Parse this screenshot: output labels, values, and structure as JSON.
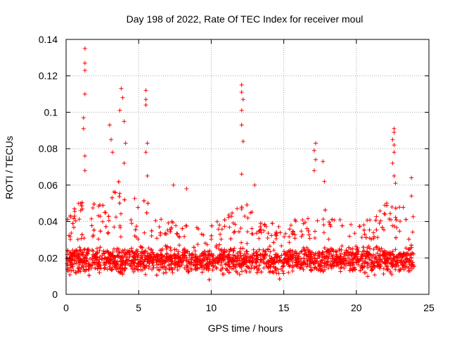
{
  "chart_data": {
    "type": "scatter",
    "title": "Day 198 of 2022, Rate Of TEC Index for receiver moul",
    "xlabel": "GPS time / hours",
    "ylabel": "ROTI / TECUs",
    "xlim": [
      0,
      25
    ],
    "ylim": [
      0,
      0.14
    ],
    "x_ticks": [
      0,
      5,
      10,
      15,
      20,
      25
    ],
    "y_ticks": [
      0,
      0.02,
      0.04,
      0.06,
      0.08,
      0.1,
      0.12,
      0.14
    ],
    "x_tick_labels": [
      "0",
      "5",
      "10",
      "15",
      "20",
      "25"
    ],
    "y_tick_labels": [
      "0",
      "0.02",
      "0.04",
      "0.06",
      "0.08",
      "0.1",
      "0.12",
      "0.14"
    ],
    "grid": true,
    "marker": "+",
    "color": "#ff0000",
    "series": [
      {
        "name": "ROTI",
        "description": "dense band of + markers roughly between 0.01 and 0.03 TECU/s across 0-24 h; the peaks listed are estimated",
        "peaks": [
          {
            "x": 1.3,
            "y": 0.135
          },
          {
            "x": 1.3,
            "y": 0.127
          },
          {
            "x": 1.3,
            "y": 0.123
          },
          {
            "x": 1.3,
            "y": 0.11
          },
          {
            "x": 1.2,
            "y": 0.097
          },
          {
            "x": 1.2,
            "y": 0.091
          },
          {
            "x": 1.3,
            "y": 0.076
          },
          {
            "x": 1.3,
            "y": 0.068
          },
          {
            "x": 3.0,
            "y": 0.093
          },
          {
            "x": 3.1,
            "y": 0.085
          },
          {
            "x": 3.2,
            "y": 0.078
          },
          {
            "x": 3.8,
            "y": 0.113
          },
          {
            "x": 3.9,
            "y": 0.108
          },
          {
            "x": 3.7,
            "y": 0.101
          },
          {
            "x": 4.0,
            "y": 0.095
          },
          {
            "x": 4.1,
            "y": 0.083
          },
          {
            "x": 4.0,
            "y": 0.072
          },
          {
            "x": 5.5,
            "y": 0.112
          },
          {
            "x": 5.5,
            "y": 0.107
          },
          {
            "x": 5.5,
            "y": 0.104
          },
          {
            "x": 5.6,
            "y": 0.083
          },
          {
            "x": 5.5,
            "y": 0.078
          },
          {
            "x": 5.6,
            "y": 0.065
          },
          {
            "x": 7.4,
            "y": 0.06
          },
          {
            "x": 8.3,
            "y": 0.058
          },
          {
            "x": 12.1,
            "y": 0.115
          },
          {
            "x": 12.1,
            "y": 0.111
          },
          {
            "x": 12.2,
            "y": 0.107
          },
          {
            "x": 12.1,
            "y": 0.101
          },
          {
            "x": 12.1,
            "y": 0.093
          },
          {
            "x": 12.2,
            "y": 0.084
          },
          {
            "x": 12.1,
            "y": 0.066
          },
          {
            "x": 13.0,
            "y": 0.06
          },
          {
            "x": 17.2,
            "y": 0.083
          },
          {
            "x": 17.1,
            "y": 0.079
          },
          {
            "x": 17.2,
            "y": 0.074
          },
          {
            "x": 17.7,
            "y": 0.073
          },
          {
            "x": 17.1,
            "y": 0.068
          },
          {
            "x": 17.8,
            "y": 0.062
          },
          {
            "x": 22.6,
            "y": 0.091
          },
          {
            "x": 22.6,
            "y": 0.089
          },
          {
            "x": 22.5,
            "y": 0.085
          },
          {
            "x": 22.6,
            "y": 0.082
          },
          {
            "x": 22.6,
            "y": 0.078
          },
          {
            "x": 22.5,
            "y": 0.072
          },
          {
            "x": 22.6,
            "y": 0.065
          },
          {
            "x": 22.7,
            "y": 0.061
          },
          {
            "x": 23.8,
            "y": 0.064
          },
          {
            "x": 23.8,
            "y": 0.054
          }
        ]
      }
    ]
  }
}
